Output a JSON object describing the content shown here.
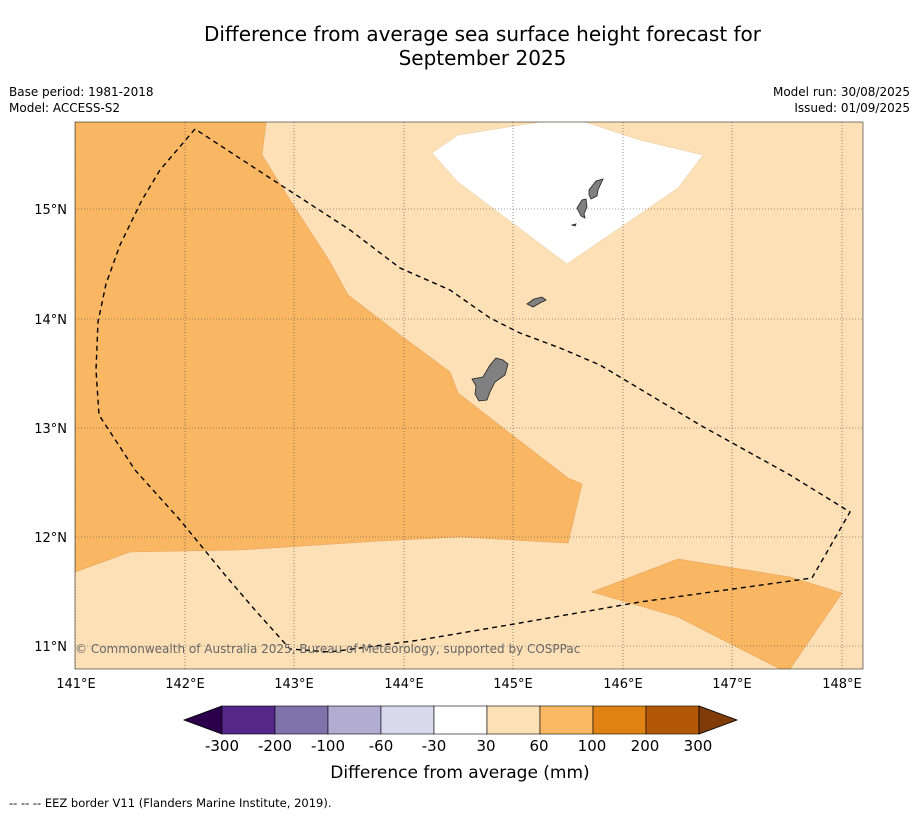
{
  "title_line1": "Difference from average sea surface height forecast for",
  "title_line2": "September 2025",
  "meta": {
    "base_period": "Base period: 1981-2018",
    "model": "Model: ACCESS-S2",
    "model_run": "Model run: 30/08/2025",
    "issued": "Issued: 01/09/2025"
  },
  "copyright": "© Commonwealth of Australia 2025, Bureau of Meteorology, supported by COSPPac",
  "lon_labels": [
    "141°E",
    "142°E",
    "143°E",
    "144°E",
    "145°E",
    "146°E",
    "147°E",
    "148°E"
  ],
  "lat_labels": [
    "15°N",
    "14°N",
    "13°N",
    "12°N",
    "11°N"
  ],
  "colorbar": {
    "ticks": [
      "-300",
      "-200",
      "-100",
      "-60",
      "-30",
      "30",
      "60",
      "100",
      "200",
      "300"
    ],
    "label": "Difference from average (mm)",
    "colors": [
      "#2d004b",
      "#542788",
      "#8073ac",
      "#b2abd2",
      "#d8daeb",
      "#ffffff",
      "#fee0b6",
      "#fdb863",
      "#e08214",
      "#b35806",
      "#7f3b08"
    ]
  },
  "footer": "--  --  -- EEZ border V11 (Flanders Marine Institute, 2019).",
  "map_colors": {
    "band_30_60": "#fde0b6",
    "band_60_100": "#fab763",
    "band_neutral": "#ffffff",
    "land": "#808080"
  }
}
